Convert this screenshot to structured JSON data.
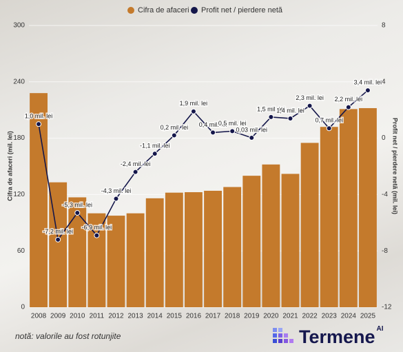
{
  "chart_data": {
    "type": "bar_line",
    "categories": [
      "2008",
      "2009",
      "2010",
      "2011",
      "2012",
      "2013",
      "2014",
      "2015",
      "2016",
      "2017",
      "2018",
      "2019",
      "2020",
      "2021",
      "2022",
      "2023",
      "2024",
      "2025"
    ],
    "series": [
      {
        "name": "Cifra de afaceri",
        "type": "bar",
        "color": "#c47a2c",
        "values": [
          228,
          133,
          117,
          100,
          97.5,
          100,
          116,
          122,
          122.5,
          124,
          128,
          140,
          152,
          142,
          175,
          192,
          211,
          212
        ]
      },
      {
        "name": "Profit net / pierdere netă",
        "type": "line",
        "axis": "y2",
        "color": "#14164a",
        "values": [
          1.0,
          -7.2,
          -5.3,
          -6.9,
          -4.3,
          -2.4,
          -1.1,
          0.2,
          1.9,
          0.4,
          0.5,
          0.03,
          1.5,
          1.4,
          2.3,
          0.7,
          2.2,
          3.4
        ],
        "value_labels": [
          "1,0 mil. lei",
          "-7,2 mil. lei",
          "-5,3 mil. lei",
          "-6,9 mil. lei",
          "-4,3 mil. lei",
          "-2,4 mil. lei",
          "-1,1 mil. lei",
          "0,2 mil. lei",
          "1,9 mil. lei",
          "0,4 mil. lei",
          "0,5 mil. lei",
          "0,03 mil. lei",
          "1,5 mil. lei",
          "1,4 mil. lei",
          "2,3 mil. lei",
          "0,7 mil. lei",
          "2,2 mil. lei",
          "3,4 mil. lei"
        ]
      }
    ],
    "ylabel": "Cifra de afaceri (mil. lei)",
    "y2label": "Profit net / pierdere netă (mil. lei)",
    "ylim": [
      0,
      300
    ],
    "yticks": [
      0,
      60,
      120,
      180,
      240,
      300
    ],
    "y2lim": [
      -12,
      8
    ],
    "y2ticks": [
      -12,
      -8,
      -4,
      0,
      4,
      8
    ],
    "grid": true,
    "legend": "top"
  },
  "footer": {
    "note": "notă: valorile au fost rotunjite",
    "brand": "Termene",
    "brand_suffix": "AI"
  }
}
